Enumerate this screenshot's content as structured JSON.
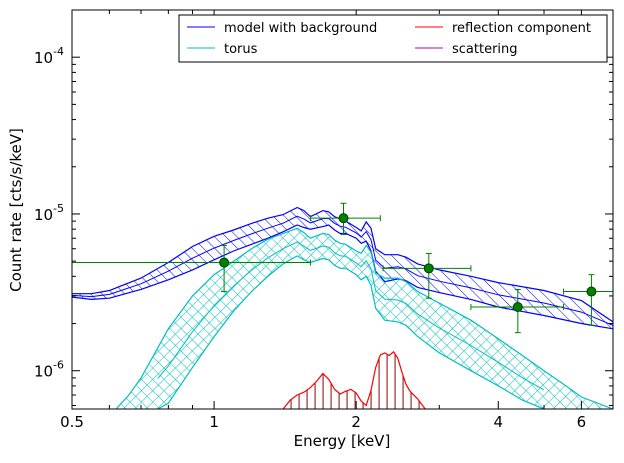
{
  "chart_data": {
    "type": "line",
    "xscale": "log",
    "yscale": "log",
    "xlim": [
      0.5,
      7.0
    ],
    "ylim": [
      5.7e-07,
      0.0002
    ],
    "xlabel": "Energy [keV]",
    "ylabel": "Count rate [cts/s/keV]",
    "x_ticks": [
      {
        "value": 0.5,
        "label": "0.5"
      },
      {
        "value": 1,
        "label": "1"
      },
      {
        "value": 2,
        "label": "2"
      },
      {
        "value": 4,
        "label": "4"
      },
      {
        "value": 6,
        "label": "6"
      }
    ],
    "y_ticks": [
      {
        "value": 1e-06,
        "base": "10",
        "exp": "-6"
      },
      {
        "value": 1e-05,
        "base": "10",
        "exp": "-5"
      },
      {
        "value": 0.0001,
        "base": "10",
        "exp": "-4"
      }
    ],
    "legend_position": "top-right",
    "legend": [
      {
        "label": "model with background",
        "color": "#0000ff"
      },
      {
        "label": "reflection component",
        "color": "#ff0000"
      },
      {
        "label": "torus",
        "color": "#00bfbf"
      },
      {
        "label": "scattering",
        "color": "#bf00bf"
      }
    ],
    "bands": [
      {
        "name": "model with background",
        "color": "#0000ff",
        "hatch": "diagonal",
        "x": [
          0.5,
          0.55,
          0.6,
          0.7,
          0.8,
          0.9,
          1.0,
          1.1,
          1.2,
          1.3,
          1.4,
          1.5,
          1.55,
          1.6,
          1.7,
          1.75,
          1.8,
          1.85,
          1.9,
          2.0,
          2.05,
          2.1,
          2.15,
          2.2,
          2.3,
          2.45,
          2.55,
          2.7,
          3.0,
          3.5,
          4.0,
          5.0,
          6.0,
          7.0
        ],
        "upper": [
          3.1e-06,
          3.1e-06,
          3.25e-06,
          3.9e-06,
          4.9e-06,
          6.2e-06,
          7.2e-06,
          7.9e-06,
          8.7e-06,
          9.4e-06,
          9.9e-06,
          1.1e-05,
          1.05e-05,
          9.6e-06,
          1.05e-05,
          1.03e-05,
          9.6e-06,
          9.3e-06,
          9e-06,
          8.2e-06,
          7.8e-06,
          8.9e-06,
          8.1e-06,
          6e-06,
          5.5e-06,
          5.5e-06,
          5.3e-06,
          4.8e-06,
          4.4e-06,
          4e-06,
          3.65e-06,
          3.25e-06,
          2.8e-06,
          2.05e-06
        ],
        "lower": [
          2.95e-06,
          2.85e-06,
          2.9e-06,
          3.3e-06,
          3.8e-06,
          4.4e-06,
          5.1e-06,
          5.8e-06,
          6.4e-06,
          7e-06,
          7.7e-06,
          8.5e-06,
          8.2e-06,
          8e-06,
          8.3e-06,
          8.5e-06,
          7.9e-06,
          7.5e-06,
          7.5e-06,
          7e-06,
          6.5e-06,
          6.7e-06,
          5.8e-06,
          4.3e-06,
          3.7e-06,
          3.85e-06,
          3.75e-06,
          3.4e-06,
          3.15e-06,
          2.85e-06,
          2.55e-06,
          2.25e-06,
          2e-06,
          1.85e-06
        ]
      },
      {
        "name": "torus",
        "color": "#00bfbf",
        "hatch": "cross",
        "x": [
          0.62,
          0.66,
          0.7,
          0.76,
          0.8,
          0.9,
          1.0,
          1.1,
          1.2,
          1.3,
          1.4,
          1.5,
          1.55,
          1.6,
          1.7,
          1.75,
          1.8,
          1.85,
          1.9,
          2.0,
          2.05,
          2.1,
          2.15,
          2.2,
          2.3,
          2.45,
          2.55,
          2.7,
          3.0,
          3.5,
          4.0,
          4.5,
          5.0,
          5.5,
          6.0,
          7.0
        ],
        "upper": [
          5.7e-07,
          7e-07,
          9e-07,
          1.4e-06,
          1.85e-06,
          3e-06,
          4.1e-06,
          5e-06,
          6e-06,
          6.9e-06,
          7.5e-06,
          8.1e-06,
          7.6e-06,
          7e-06,
          7.5e-06,
          7.4e-06,
          6.8e-06,
          6.5e-06,
          6.4e-06,
          5.8e-06,
          5.6e-06,
          6.3e-06,
          5.7e-06,
          4.2e-06,
          3.9e-06,
          3.9e-06,
          3.7e-06,
          3.2e-06,
          2.7e-06,
          2.1e-06,
          1.6e-06,
          1.25e-06,
          1e-06,
          8.2e-07,
          6.8e-07,
          5.7e-07
        ],
        "lower": [
          null,
          null,
          null,
          5.7e-07,
          6.2e-07,
          1.05e-06,
          1.65e-06,
          2.4e-06,
          3.2e-06,
          4e-06,
          4.8e-06,
          5.4e-06,
          5.1e-06,
          4.9e-06,
          5.2e-06,
          5.1e-06,
          4.7e-06,
          4.5e-06,
          4.5e-06,
          4.1e-06,
          3.8e-06,
          4e-06,
          3.5e-06,
          2.5e-06,
          2.1e-06,
          2.05e-06,
          1.95e-06,
          1.65e-06,
          1.3e-06,
          1e-06,
          8e-07,
          6.5e-07,
          5.7e-07,
          null,
          null,
          null
        ]
      }
    ],
    "lines": [
      {
        "name": "reflection component",
        "color": "#ff0000",
        "x": [
          1.4,
          1.45,
          1.5,
          1.55,
          1.6,
          1.65,
          1.7,
          1.75,
          1.8,
          1.85,
          1.9,
          1.95,
          2.0,
          2.05,
          2.1,
          2.15,
          2.2,
          2.25,
          2.3,
          2.35,
          2.4,
          2.45,
          2.5,
          2.55,
          2.6,
          2.7,
          2.8
        ],
        "y": [
          5.7e-07,
          6.5e-07,
          7e-07,
          7.3e-07,
          7.8e-07,
          8.6e-07,
          9.6e-07,
          8.8e-07,
          7.6e-07,
          7.1e-07,
          7.4e-07,
          7.6e-07,
          7.2e-07,
          6.4e-07,
          6e-07,
          7.5e-07,
          1.05e-06,
          1.26e-06,
          1.3e-06,
          1.25e-06,
          1.32e-06,
          1.2e-06,
          9.8e-07,
          8.2e-07,
          7.4e-07,
          6.6e-07,
          5.7e-07
        ]
      }
    ],
    "series": [
      {
        "name": "data",
        "color": "#008000",
        "points": [
          {
            "x": 1.05,
            "y": 4.9e-06,
            "xlo": 0.5,
            "xhi": 1.6,
            "ylo": 3.2e-06,
            "yhi": 6.3e-06
          },
          {
            "x": 1.88,
            "y": 9.4e-06,
            "xlo": 1.6,
            "xhi": 2.25,
            "ylo": 7.4e-06,
            "yhi": 1.17e-05
          },
          {
            "x": 2.85,
            "y": 4.5e-06,
            "xlo": 2.28,
            "xhi": 3.5,
            "ylo": 2.9e-06,
            "yhi": 5.6e-06
          },
          {
            "x": 4.4,
            "y": 2.55e-06,
            "xlo": 3.5,
            "xhi": 5.5,
            "ylo": 1.75e-06,
            "yhi": 3.3e-06
          },
          {
            "x": 6.3,
            "y": 3.2e-06,
            "xlo": 5.5,
            "xhi": 7.0,
            "ylo": 1.95e-06,
            "yhi": 4.1e-06
          }
        ]
      }
    ]
  }
}
